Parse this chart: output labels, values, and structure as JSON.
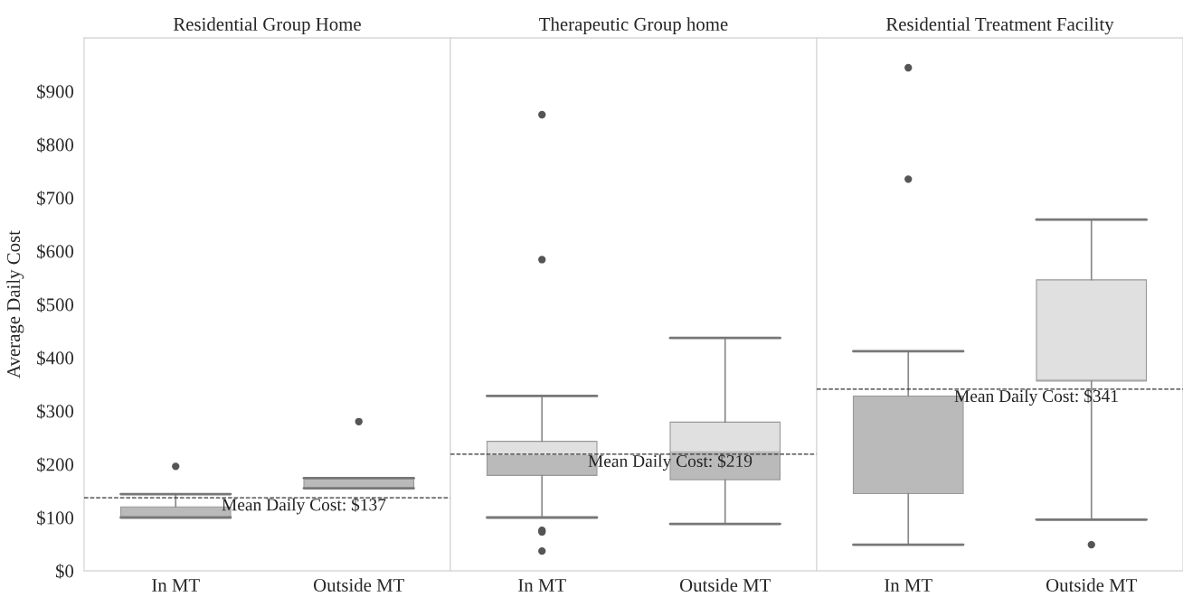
{
  "chart_data": [
    {
      "type": "box",
      "title": "Residential Group Home",
      "ylabel": "Average Daily Cost",
      "categories": [
        "In MT",
        "Outside MT"
      ],
      "boxes": [
        {
          "low": 100,
          "q1": 100,
          "median": 120,
          "q3": 120,
          "high": 144,
          "outliers": [
            196
          ]
        },
        {
          "low": 155,
          "q1": 155,
          "median": 174,
          "q3": 174,
          "high": 174,
          "outliers": [
            280
          ]
        }
      ],
      "ref_lines": [
        {
          "axis": "y",
          "value": 137,
          "label": "Mean Daily Cost: $137",
          "line_style": "dashed"
        }
      ],
      "ylim": [
        0,
        1000
      ],
      "yticks": [
        {
          "value": 0,
          "label": "$0"
        },
        {
          "value": 100,
          "label": "$100"
        },
        {
          "value": 200,
          "label": "$200"
        },
        {
          "value": 300,
          "label": "$300"
        },
        {
          "value": 400,
          "label": "$400"
        },
        {
          "value": 500,
          "label": "$500"
        },
        {
          "value": 600,
          "label": "$600"
        },
        {
          "value": 700,
          "label": "$700"
        },
        {
          "value": 800,
          "label": "$800"
        },
        {
          "value": 900,
          "label": "$900"
        }
      ],
      "grid": false
    },
    {
      "type": "box",
      "title": "Therapeutic Group home",
      "categories": [
        "In MT",
        "Outside MT"
      ],
      "boxes": [
        {
          "low": 100,
          "q1": 179,
          "median": 218,
          "q3": 243,
          "high": 328,
          "outliers": [
            37,
            73,
            76,
            584,
            856
          ]
        },
        {
          "low": 88,
          "q1": 171,
          "median": 225,
          "q3": 279,
          "high": 437
        }
      ],
      "ref_lines": [
        {
          "axis": "y",
          "value": 219,
          "label": "Mean Daily Cost: $219",
          "line_style": "dashed"
        }
      ],
      "ylim": [
        0,
        1000
      ],
      "tick_labels": "x",
      "grid": false
    },
    {
      "type": "box",
      "title": "Residential Treatment Facility",
      "categories": [
        "In MT",
        "Outside MT"
      ],
      "boxes": [
        {
          "low": 49,
          "q1": 145,
          "median": 328,
          "q3": 328,
          "high": 412,
          "outliers": [
            735,
            944
          ]
        },
        {
          "low": 96,
          "q1": 356,
          "median": 360,
          "q3": 546,
          "high": 659,
          "outliers": [
            49
          ]
        }
      ],
      "ref_lines": [
        {
          "axis": "y",
          "value": 341,
          "label": "Mean Daily Cost: $341",
          "line_style": "dashed"
        }
      ],
      "ylim": [
        0,
        1000
      ],
      "tick_labels": "x",
      "grid": false
    }
  ]
}
